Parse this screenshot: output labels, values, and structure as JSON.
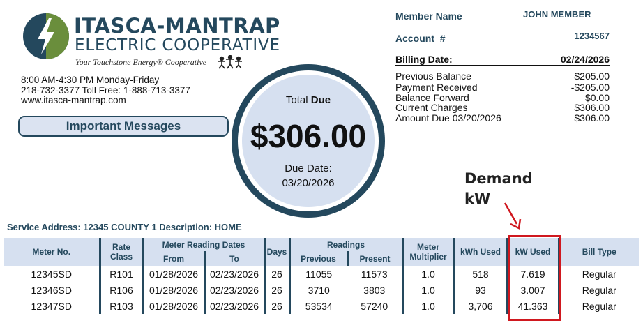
{
  "logo": {
    "brand": "ITASCA-MANTRAP",
    "sub": "ELECTRIC COOPERATIVE",
    "tagline": "Your Touchstone Energy® Cooperative",
    "icon": "lightning-bolt-icon",
    "colors": {
      "navy": "#24485d",
      "green": "#6a8e3c"
    }
  },
  "contact": {
    "hours": "8:00 AM-4:30 PM Monday-Friday",
    "phone": "218-732-3377  Toll Free: 1-888-713-3377",
    "website": "www.itasca-mantrap.com"
  },
  "messages_button": "Important Messages",
  "total": {
    "label_prefix": "Total ",
    "label_bold": "Due",
    "amount": "$306.00",
    "due_label": "Due Date:",
    "due_date": "03/20/2026"
  },
  "account": {
    "member_label": "Member Name",
    "member_name": "JOHN MEMBER",
    "account_label": "Account  #",
    "account_number": "1234567",
    "billing_label": "Billing Date:",
    "billing_date": "02/24/2026",
    "rows": [
      {
        "label": "Previous Balance",
        "value": "$205.00"
      },
      {
        "label": "Payment Received",
        "value": "-$205.00"
      },
      {
        "label": "Balance Forward",
        "value": "$0.00"
      },
      {
        "label": "Current Charges",
        "value": "$306.00"
      },
      {
        "label": "Amount Due 03/20/2026",
        "value": "$306.00"
      }
    ]
  },
  "annotation": {
    "line1": "Demand",
    "line2": "kW",
    "color": "#d0181f"
  },
  "service_address": "Service Address: 12345 COUNTY 1 Description: HOME",
  "table": {
    "headers": {
      "meter_no": "Meter No.",
      "rate_class": "Rate Class",
      "reading_dates": "Meter Reading Dates",
      "from": "From",
      "to": "To",
      "days": "Days",
      "readings": "Readings",
      "previous": "Previous",
      "present": "Present",
      "multiplier": "Meter Multiplier",
      "kwh_used": "kWh Used",
      "kw_used": "kW Used",
      "bill_type": "Bill Type"
    },
    "rows": [
      [
        "12345SD",
        "R101",
        "01/28/2026",
        "02/23/2026",
        "26",
        "11055",
        "11573",
        "1.0",
        "518",
        "7.619",
        "Regular"
      ],
      [
        "12346SD",
        "R106",
        "01/28/2026",
        "02/23/2026",
        "26",
        "3710",
        "3803",
        "1.0",
        "93",
        "3.007",
        "Regular"
      ],
      [
        "12347SD",
        "R103",
        "01/28/2026",
        "02/23/2026",
        "26",
        "53534",
        "57240",
        "1.0",
        "3,706",
        "41.363",
        "Regular"
      ]
    ]
  }
}
